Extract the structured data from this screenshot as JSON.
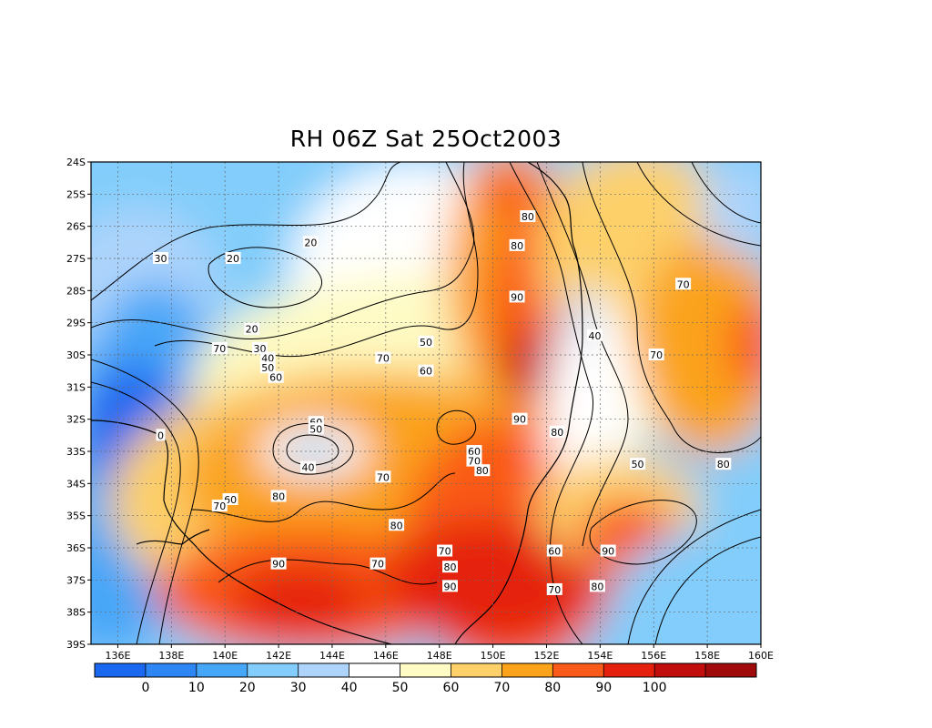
{
  "title": "RH 06Z Sat 25Oct2003",
  "map": {
    "lon_range": [
      135,
      160
    ],
    "lat_range": [
      -39,
      -24
    ],
    "lon_ticks": [
      "136E",
      "138E",
      "140E",
      "142E",
      "144E",
      "146E",
      "148E",
      "150E",
      "152E",
      "154E",
      "156E",
      "158E",
      "160E"
    ],
    "lat_ticks": [
      "24S",
      "25S",
      "26S",
      "27S",
      "28S",
      "29S",
      "30S",
      "31S",
      "32S",
      "33S",
      "34S",
      "35S",
      "36S",
      "37S",
      "38S",
      "39S"
    ],
    "contour_labels": [
      {
        "text": "20",
        "lon": 143.2,
        "lat": -26.5
      },
      {
        "text": "20",
        "lon": 140.3,
        "lat": -27.0
      },
      {
        "text": "20",
        "lon": 141.0,
        "lat": -29.2
      },
      {
        "text": "30",
        "lon": 137.6,
        "lat": -27.0
      },
      {
        "text": "30",
        "lon": 141.3,
        "lat": -29.8
      },
      {
        "text": "40",
        "lon": 141.6,
        "lat": -30.1
      },
      {
        "text": "50",
        "lon": 141.6,
        "lat": -30.4
      },
      {
        "text": "60",
        "lon": 141.9,
        "lat": -30.7
      },
      {
        "text": "70",
        "lon": 139.8,
        "lat": -29.8
      },
      {
        "text": "70",
        "lon": 145.9,
        "lat": -30.1
      },
      {
        "text": "50",
        "lon": 147.5,
        "lat": -29.6
      },
      {
        "text": "60",
        "lon": 147.5,
        "lat": -30.5
      },
      {
        "text": "80",
        "lon": 151.3,
        "lat": -25.7
      },
      {
        "text": "80",
        "lon": 150.9,
        "lat": -26.6
      },
      {
        "text": "90",
        "lon": 150.9,
        "lat": -28.2
      },
      {
        "text": "40",
        "lon": 153.8,
        "lat": -29.4
      },
      {
        "text": "70",
        "lon": 157.1,
        "lat": -27.8
      },
      {
        "text": "70",
        "lon": 156.1,
        "lat": -30.0
      },
      {
        "text": "0",
        "lon": 137.6,
        "lat": -32.5
      },
      {
        "text": "60",
        "lon": 143.4,
        "lat": -32.1
      },
      {
        "text": "50",
        "lon": 143.4,
        "lat": -32.3
      },
      {
        "text": "40",
        "lon": 143.1,
        "lat": -33.5
      },
      {
        "text": "90",
        "lon": 151.0,
        "lat": -32.0
      },
      {
        "text": "80",
        "lon": 152.4,
        "lat": -32.4
      },
      {
        "text": "60",
        "lon": 149.3,
        "lat": -33.0
      },
      {
        "text": "70",
        "lon": 149.3,
        "lat": -33.3
      },
      {
        "text": "80",
        "lon": 149.6,
        "lat": -33.6
      },
      {
        "text": "70",
        "lon": 145.9,
        "lat": -33.8
      },
      {
        "text": "50",
        "lon": 155.4,
        "lat": -33.4
      },
      {
        "text": "80",
        "lon": 158.6,
        "lat": -33.4
      },
      {
        "text": "60",
        "lon": 140.2,
        "lat": -34.5
      },
      {
        "text": "70",
        "lon": 139.8,
        "lat": -34.7
      },
      {
        "text": "80",
        "lon": 142.0,
        "lat": -34.4
      },
      {
        "text": "80",
        "lon": 146.4,
        "lat": -35.3
      },
      {
        "text": "70",
        "lon": 148.2,
        "lat": -36.1
      },
      {
        "text": "80",
        "lon": 148.4,
        "lat": -36.6
      },
      {
        "text": "70",
        "lon": 145.7,
        "lat": -36.5
      },
      {
        "text": "90",
        "lon": 142.0,
        "lat": -36.5
      },
      {
        "text": "90",
        "lon": 148.4,
        "lat": -37.2
      },
      {
        "text": "60",
        "lon": 152.3,
        "lat": -36.1
      },
      {
        "text": "70",
        "lon": 152.3,
        "lat": -37.3
      },
      {
        "text": "90",
        "lon": 154.3,
        "lat": -36.1
      },
      {
        "text": "80",
        "lon": 153.9,
        "lat": -37.2
      }
    ]
  },
  "colorbar": {
    "labels": [
      "0",
      "10",
      "20",
      "30",
      "40",
      "50",
      "60",
      "70",
      "80",
      "90",
      "100"
    ],
    "colors": [
      "#1a68f0",
      "#2e86f5",
      "#46a6f8",
      "#82cdfb",
      "#aed4fb",
      "#ffffff",
      "#fefbc5",
      "#fdd06a",
      "#fba31a",
      "#fa5a19",
      "#e5210d",
      "#c20d0d",
      "#a10a0a"
    ]
  }
}
